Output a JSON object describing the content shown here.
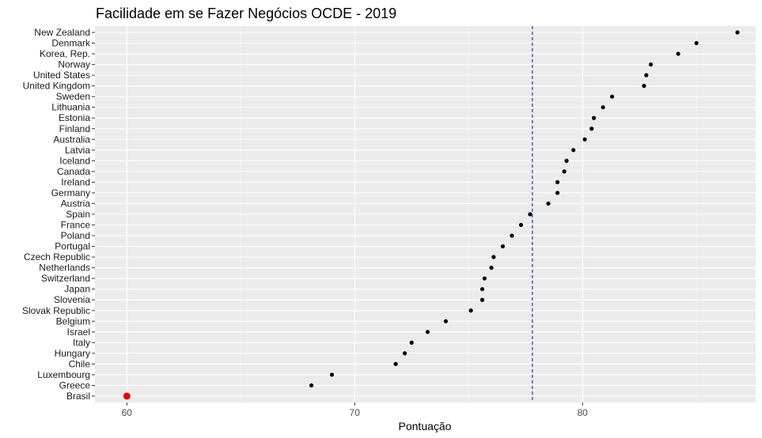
{
  "chart_data": {
    "type": "scatter",
    "title": "Facilidade em se Fazer Negócios OCDE - 2019",
    "xlabel": "Pontuação",
    "ylabel": "",
    "xlim": [
      58.6,
      87.6
    ],
    "xticks": [
      60,
      70,
      80
    ],
    "grid": true,
    "legend": "none",
    "reference_line": {
      "x": 77.8,
      "style": "dashed",
      "color": "#0000cc"
    },
    "categories": [
      "New Zealand",
      "Denmark",
      "Korea, Rep.",
      "Norway",
      "United States",
      "United Kingdom",
      "Sweden",
      "Lithuania",
      "Estonia",
      "Finland",
      "Australia",
      "Latvia",
      "Iceland",
      "Canada",
      "Ireland",
      "Germany",
      "Austria",
      "Spain",
      "France",
      "Poland",
      "Portugal",
      "Czech Republic",
      "Netherlands",
      "Switzerland",
      "Japan",
      "Slovenia",
      "Slovak Republic",
      "Belgium",
      "Israel",
      "Italy",
      "Hungary",
      "Chile",
      "Luxembourg",
      "Greece",
      "Brasil"
    ],
    "values": [
      86.8,
      85.0,
      84.2,
      83.0,
      82.8,
      82.7,
      81.3,
      80.9,
      80.5,
      80.4,
      80.1,
      79.6,
      79.3,
      79.2,
      78.9,
      78.9,
      78.5,
      77.7,
      77.3,
      76.9,
      76.5,
      76.1,
      76.0,
      75.7,
      75.6,
      75.6,
      75.1,
      74.0,
      73.2,
      72.5,
      72.2,
      71.8,
      69.0,
      68.1,
      60.0
    ],
    "highlight": {
      "category": "Brasil",
      "color": "#ee0000"
    },
    "point_color": "#000000"
  },
  "colors": {
    "panel_bg": "#ebebeb",
    "grid_major": "#ffffff",
    "grid_minor": "#f5f5f5"
  }
}
